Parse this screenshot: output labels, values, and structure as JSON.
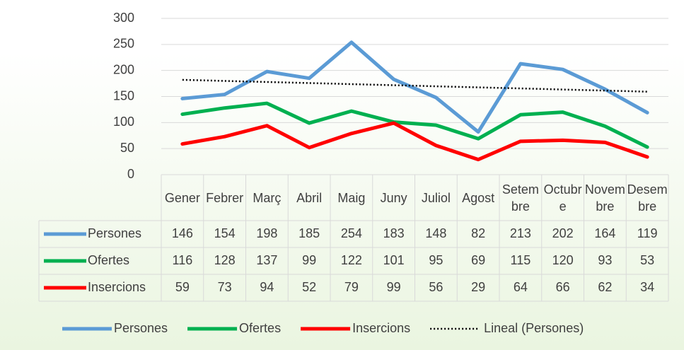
{
  "chart_data": {
    "type": "line",
    "categories": [
      "Gener",
      "Febrer",
      "Març",
      "Abril",
      "Maig",
      "Juny",
      "Juliol",
      "Agost",
      "Setembre",
      "Octubre",
      "Novembre",
      "Desembre"
    ],
    "series": [
      {
        "name": "Persones",
        "color": "#5b9bd5",
        "values": [
          146,
          154,
          198,
          185,
          254,
          183,
          148,
          82,
          213,
          202,
          164,
          119
        ]
      },
      {
        "name": "Ofertes",
        "color": "#00b050",
        "values": [
          116,
          128,
          137,
          99,
          122,
          101,
          95,
          69,
          115,
          120,
          93,
          53
        ]
      },
      {
        "name": "Insercions",
        "color": "#ff0000",
        "values": [
          59,
          73,
          94,
          52,
          79,
          99,
          56,
          29,
          64,
          66,
          62,
          34
        ]
      }
    ],
    "trendline": {
      "name": "Lineal (Persones)",
      "series": 0,
      "type": "linear",
      "color": "#000000"
    },
    "ylim": [
      0,
      300
    ],
    "yticks": [
      0,
      50,
      100,
      150,
      200,
      250,
      300
    ],
    "grid": true,
    "data_table": true,
    "legend": "bottom"
  }
}
